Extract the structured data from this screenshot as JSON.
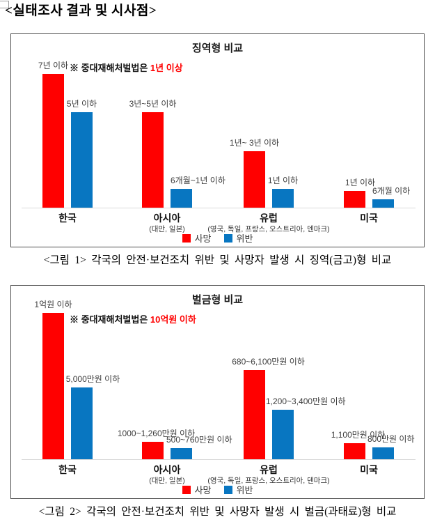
{
  "page_title": "<실태조사 결과 및 시사점>",
  "captions": [
    "<그림 1> 각국의 안전·보건조치 위반 및 사망자 발생 시 징역(금고)형 비교",
    "<그림 2> 각국의 안전·보건조치 위반 및 사망자 발생 시 벌금(과태료)형 비교"
  ],
  "chart_data": [
    {
      "type": "bar",
      "title": "징역형 비교",
      "annotation": {
        "prefix": "※ 중대재해처벌법은",
        "highlight": "1년 이상",
        "highlight_color": "#ff0000"
      },
      "legend": [
        {
          "name": "사망",
          "color": "#ff0000"
        },
        {
          "name": "위반",
          "color": "#0876c1"
        }
      ],
      "legend_position": "bottom-center",
      "axis": {
        "gridlines": false,
        "value_axis_visible": false,
        "unit": "년"
      },
      "groups": [
        {
          "category": "한국",
          "sub": "",
          "bars": [
            {
              "series": "사망",
              "label": "7년 이하",
              "max_years": 7,
              "size": 192,
              "align": "center",
              "dx": 0
            },
            {
              "series": "위반",
              "label": "5년 이하",
              "max_years": 5,
              "size": 137,
              "align": "center",
              "dx": 0
            }
          ]
        },
        {
          "category": "아시아",
          "sub": "(대만, 일본)",
          "bars": [
            {
              "series": "사망",
              "label": "3년~5년 이하",
              "max_years": 5,
              "size": 137,
              "align": "center",
              "dx": 0
            },
            {
              "series": "위반",
              "label": "6개월~1년 이하",
              "max_years": 1,
              "size": 27,
              "align": "left",
              "dx": 0
            }
          ]
        },
        {
          "category": "유럽",
          "sub": "(영국, 독일, 프랑스, 오스트리아, 덴마크)",
          "bars": [
            {
              "series": "사망",
              "label": "1년~ 3년 이하",
              "max_years": 3,
              "size": 81,
              "align": "center",
              "dx": 0
            },
            {
              "series": "위반",
              "label": "1년 이하",
              "max_years": 1,
              "size": 27,
              "align": "center",
              "dx": 0
            }
          ]
        },
        {
          "category": "미국",
          "sub": "",
          "bars": [
            {
              "series": "사망",
              "label": "1년 이하",
              "max_years": 1,
              "size": 24,
              "align": "center",
              "dx": 8
            },
            {
              "series": "위반",
              "label": "6개월 이하",
              "max_years": 0.5,
              "size": 12,
              "align": "left",
              "dx": 0
            }
          ]
        }
      ]
    },
    {
      "type": "bar",
      "title": "벌금형 비교",
      "annotation": {
        "prefix": "※ 중대재해처벌법은",
        "highlight": "10억원 이하",
        "highlight_color": "#ff0000"
      },
      "legend": [
        {
          "name": "사망",
          "color": "#ff0000"
        },
        {
          "name": "위반",
          "color": "#0876c1"
        }
      ],
      "legend_position": "bottom-center",
      "axis": {
        "gridlines": false,
        "value_axis_visible": false,
        "unit": "만원"
      },
      "groups": [
        {
          "category": "한국",
          "sub": "",
          "bars": [
            {
              "series": "사망",
              "label": "1억원 이하",
              "max_amount_manwon": 10000,
              "size": 210,
              "align": "center",
              "dx": 0
            },
            {
              "series": "위반",
              "label": "5,000만원 이하",
              "max_amount_manwon": 5000,
              "size": 103,
              "align": "center",
              "dx": 16
            }
          ]
        },
        {
          "category": "아시아",
          "sub": "(대만, 일본)",
          "bars": [
            {
              "series": "사망",
              "label": "1000~1,260만원 이하",
              "max_amount_manwon": 1260,
              "size": 25,
              "align": "center",
              "dx": 5
            },
            {
              "series": "위반",
              "label": "500~760만원 이하",
              "max_amount_manwon": 760,
              "size": 16,
              "align": "left",
              "dx": -6
            }
          ]
        },
        {
          "category": "유럽",
          "sub": "(영국, 독일, 프랑스, 오스트리아, 덴마크)",
          "bars": [
            {
              "series": "사망",
              "label": "680~6,100만원 이하",
              "max_amount_manwon": 6100,
              "size": 128,
              "align": "center",
              "dx": 20
            },
            {
              "series": "위반",
              "label": "1,200~3,400만원 이하",
              "max_amount_manwon": 3400,
              "size": 71,
              "align": "left",
              "dx": -9
            }
          ]
        },
        {
          "category": "미국",
          "sub": "",
          "bars": [
            {
              "series": "사망",
              "label": "1,100만원 이하",
              "max_amount_manwon": 1100,
              "size": 23,
              "align": "center",
              "dx": 5
            },
            {
              "series": "위반",
              "label": "800만원 이하",
              "max_amount_manwon": 800,
              "size": 17,
              "align": "left",
              "dx": -7
            }
          ]
        }
      ]
    }
  ]
}
